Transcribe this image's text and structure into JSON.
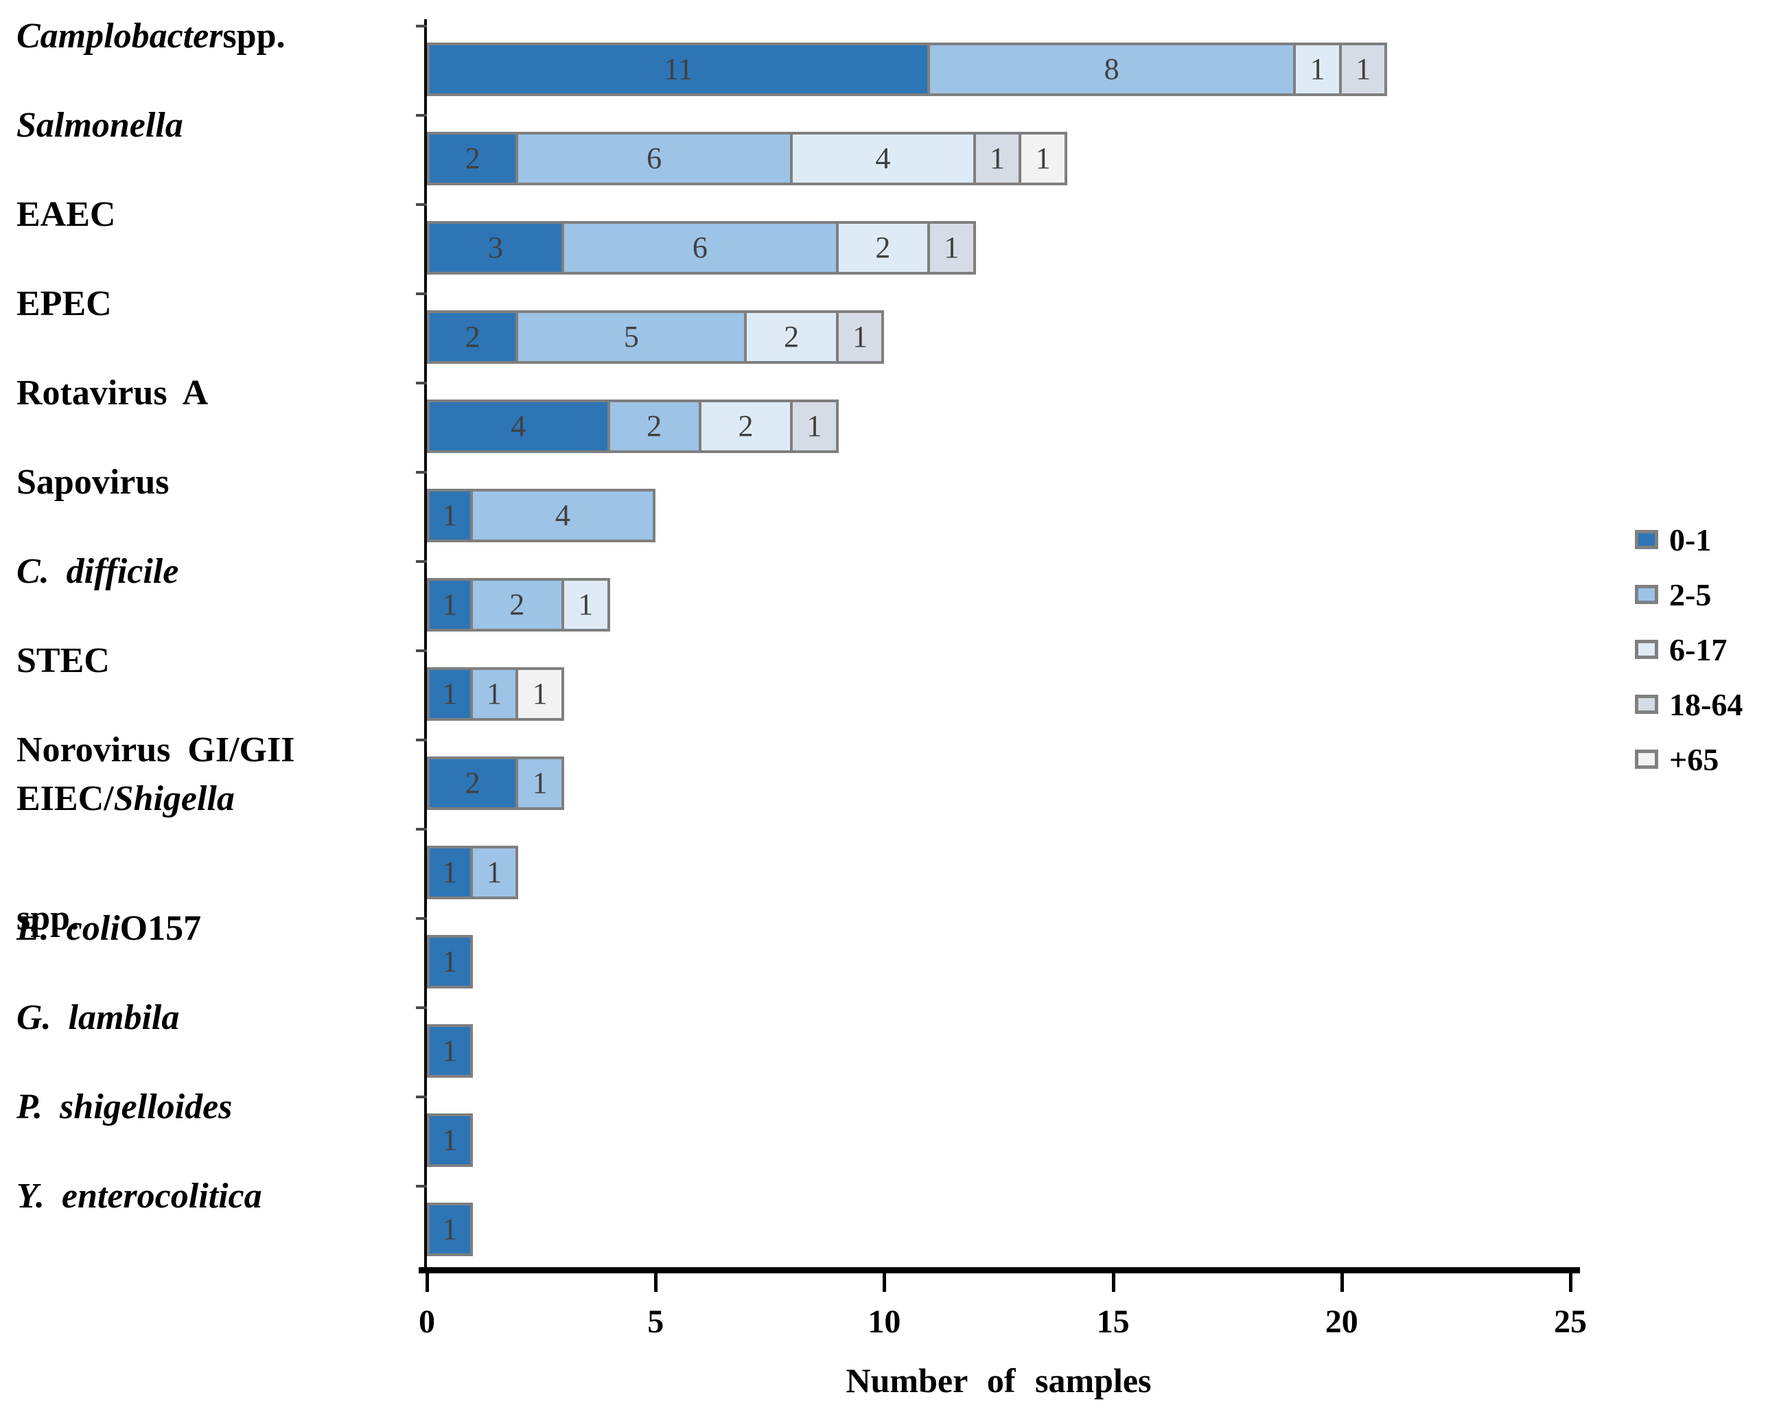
{
  "chart_data": {
    "type": "bar",
    "orientation": "horizontal",
    "stacked": true,
    "title": "",
    "xlabel": "Number of samples",
    "ylabel": "",
    "xlim": [
      0,
      25
    ],
    "x_ticks": [
      "0",
      "5",
      "10",
      "15",
      "20",
      "25"
    ],
    "x_tick_values": [
      0,
      5,
      10,
      15,
      20,
      25
    ],
    "grid": false,
    "legend_position": "right",
    "groups": [
      {
        "label": "0-1",
        "color": "#2E75B6"
      },
      {
        "label": "2-5",
        "color": "#9DC3E6"
      },
      {
        "label": "6-17",
        "color": "#DEEBF7"
      },
      {
        "label": "18-64",
        "color": "#D6DCE5"
      },
      {
        "label": "+65",
        "color": "#F2F2F2"
      }
    ],
    "categories": [
      "Camplobacter spp.",
      "Salmonella",
      "EAEC",
      "EPEC",
      "Rotavirus A",
      "Sapovirus",
      "C. difficile",
      "STEC",
      "Norovirus GI/GII",
      "EIEC/Shigella spp.",
      "E. coli O157",
      "G. lambila",
      "P. shigelloides",
      "Y. enterocolitica"
    ],
    "series": [
      {
        "name": "0-1",
        "values": [
          11,
          2,
          3,
          2,
          4,
          1,
          1,
          1,
          2,
          1,
          1,
          1,
          1,
          1
        ]
      },
      {
        "name": "2-5",
        "values": [
          8,
          6,
          6,
          5,
          2,
          4,
          2,
          1,
          1,
          1,
          0,
          0,
          0,
          0
        ]
      },
      {
        "name": "6-17",
        "values": [
          1,
          4,
          2,
          2,
          2,
          0,
          1,
          0,
          0,
          0,
          0,
          0,
          0,
          0
        ]
      },
      {
        "name": "18-64",
        "values": [
          1,
          1,
          1,
          1,
          1,
          0,
          0,
          0,
          0,
          0,
          0,
          0,
          0,
          0
        ]
      },
      {
        "name": "+65",
        "values": [
          0,
          1,
          0,
          0,
          0,
          0,
          0,
          1,
          0,
          0,
          0,
          0,
          0,
          0
        ]
      }
    ],
    "totals": [
      21,
      14,
      12,
      10,
      9,
      5,
      4,
      3,
      3,
      2,
      1,
      1,
      1,
      1
    ],
    "bar_border_color": "#7F7F7F",
    "value_label_color": "#404040",
    "axis_color": "#000000"
  },
  "category_labels_rich": [
    {
      "lines": [
        [
          {
            "t": "Camplobacter",
            "i": true
          },
          {
            "t": " spp.",
            "i": false
          }
        ]
      ]
    },
    {
      "lines": [
        [
          {
            "t": "Salmonella",
            "i": true
          }
        ]
      ]
    },
    {
      "lines": [
        [
          {
            "t": "EAEC",
            "i": false
          }
        ]
      ]
    },
    {
      "lines": [
        [
          {
            "t": "EPEC",
            "i": false
          }
        ]
      ]
    },
    {
      "lines": [
        [
          {
            "t": "Rotavirus A",
            "i": false
          }
        ]
      ]
    },
    {
      "lines": [
        [
          {
            "t": "Sapovirus",
            "i": false
          }
        ]
      ]
    },
    {
      "lines": [
        [
          {
            "t": "C. difficile",
            "i": true
          }
        ]
      ]
    },
    {
      "lines": [
        [
          {
            "t": "STEC",
            "i": false
          }
        ]
      ]
    },
    {
      "lines": [
        [
          {
            "t": "Norovirus GI/GII",
            "i": false
          }
        ]
      ]
    },
    {
      "lines": [
        [
          {
            "t": "EIEC/",
            "i": false
          },
          {
            "t": "Shigella",
            "i": true
          }
        ],
        [
          {
            "t": "spp.",
            "i": false
          }
        ]
      ]
    },
    {
      "lines": [
        [
          {
            "t": "E. coli",
            "i": true
          },
          {
            "t": " O157",
            "i": false
          }
        ]
      ]
    },
    {
      "lines": [
        [
          {
            "t": "G. lambila",
            "i": true
          }
        ]
      ]
    },
    {
      "lines": [
        [
          {
            "t": "P. shigelloides",
            "i": true
          }
        ]
      ]
    },
    {
      "lines": [
        [
          {
            "t": "Y. enterocolitica",
            "i": true
          }
        ]
      ]
    }
  ]
}
